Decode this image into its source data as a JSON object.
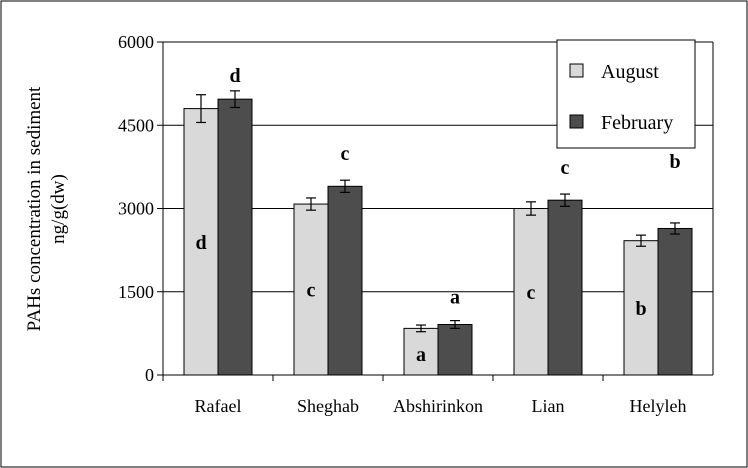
{
  "chart_data": {
    "type": "bar",
    "title": "",
    "ylabel_lines": [
      "PAHs concentration in sediment",
      "ng/g(dw)"
    ],
    "xlabel": "",
    "ylim": [
      0,
      6000
    ],
    "yticks": [
      0,
      1500,
      3000,
      4500,
      6000
    ],
    "grid": true,
    "legend_position": "top-right",
    "categories": [
      "Rafael",
      "Sheghab",
      "Abshirinkon",
      "Lian",
      "Helyleh"
    ],
    "series": [
      {
        "name": "August",
        "color": "#d9d9d9",
        "values": [
          4800,
          3080,
          840,
          3000,
          2420
        ],
        "errors": [
          250,
          110,
          60,
          120,
          100
        ],
        "labels": [
          "d",
          "c",
          "a",
          "c",
          "b"
        ],
        "label_placement": "inside"
      },
      {
        "name": "February",
        "color": "#4d4d4d",
        "values": [
          4970,
          3400,
          910,
          3150,
          2640
        ],
        "errors": [
          150,
          110,
          70,
          110,
          100
        ],
        "labels": [
          "d",
          "c",
          "a",
          "c",
          "b"
        ],
        "label_placement": "above"
      }
    ]
  }
}
